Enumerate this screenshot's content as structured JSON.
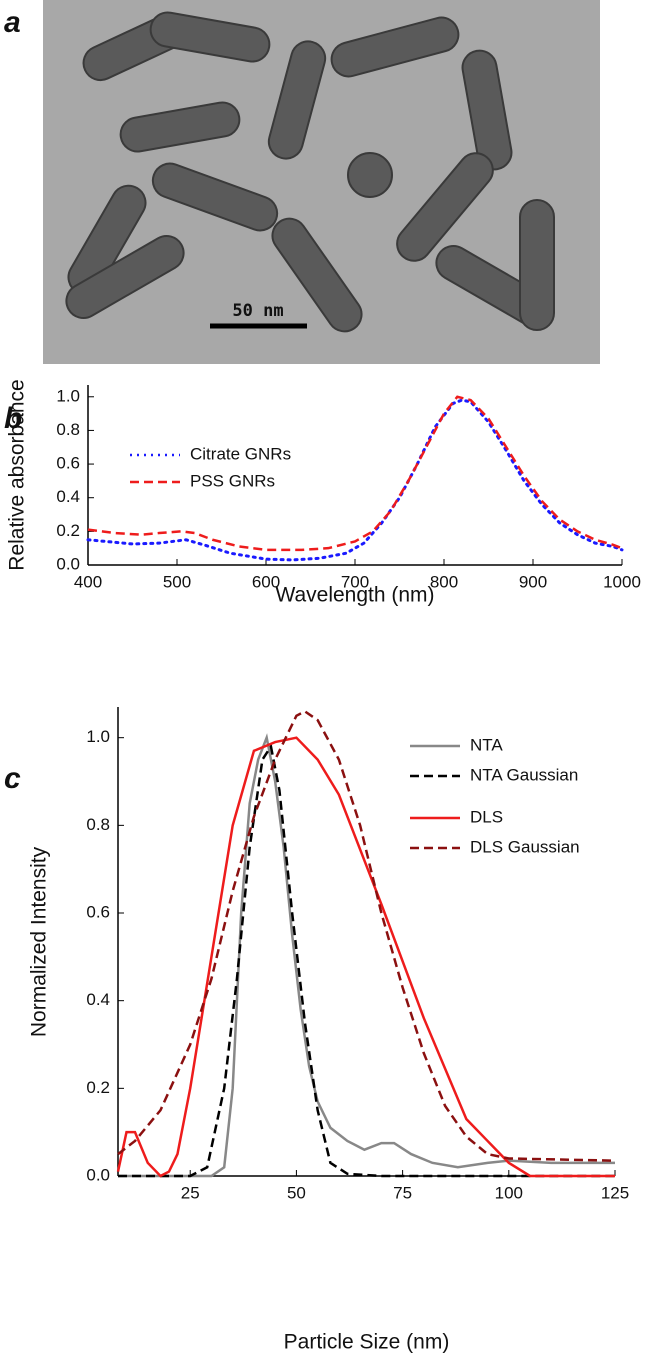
{
  "image": {
    "panel_label": "a",
    "scale_bar": "50 nm"
  },
  "chart_data": [
    {
      "type": "line",
      "panel_label": "b",
      "x_label": "Wavelength (nm)",
      "y_label": "Relative absorbance",
      "xlim": [
        400,
        1000
      ],
      "xticks": [
        400,
        500,
        600,
        700,
        800,
        900,
        1000
      ],
      "ylim": [
        0,
        1.07
      ],
      "yticks": [
        {
          "value": 0,
          "label": "0.0"
        },
        0.2,
        0.4,
        0.6,
        0.8,
        {
          "value": 1,
          "label": "1.0"
        }
      ],
      "legend": "upper left",
      "series": [
        {
          "name": "Citrate GNRs",
          "color": "#1a1aff",
          "dash": "dotted",
          "x": [
            400,
            450,
            480,
            510,
            530,
            560,
            600,
            630,
            660,
            690,
            710,
            730,
            750,
            770,
            790,
            810,
            820,
            830,
            850,
            870,
            890,
            910,
            930,
            950,
            970,
            990,
            1000
          ],
          "values": [
            0.15,
            0.125,
            0.13,
            0.15,
            0.12,
            0.07,
            0.035,
            0.03,
            0.04,
            0.07,
            0.13,
            0.25,
            0.4,
            0.6,
            0.82,
            0.96,
            0.98,
            0.97,
            0.85,
            0.68,
            0.5,
            0.36,
            0.25,
            0.18,
            0.13,
            0.11,
            0.09
          ]
        },
        {
          "name": "PSS GNRs",
          "color": "#ee1c1c",
          "dash": "dashed",
          "x": [
            400,
            430,
            460,
            480,
            505,
            520,
            540,
            570,
            600,
            640,
            670,
            700,
            720,
            740,
            760,
            780,
            800,
            815,
            830,
            850,
            870,
            890,
            910,
            930,
            950,
            970,
            990,
            1000
          ],
          "values": [
            0.21,
            0.19,
            0.18,
            0.19,
            0.2,
            0.19,
            0.15,
            0.11,
            0.09,
            0.09,
            0.1,
            0.14,
            0.2,
            0.32,
            0.5,
            0.7,
            0.9,
            1.0,
            0.98,
            0.87,
            0.7,
            0.53,
            0.38,
            0.27,
            0.2,
            0.15,
            0.12,
            0.1
          ]
        }
      ]
    },
    {
      "type": "line",
      "panel_label": "c",
      "x_label": "Particle Size (nm)",
      "y_label": "Normalized Intensity",
      "xlim": [
        8,
        125
      ],
      "xticks": [
        25,
        50,
        75,
        100,
        125
      ],
      "ylim": [
        0,
        1.07
      ],
      "yticks": [
        {
          "value": 0,
          "label": "0.0"
        },
        0.2,
        0.4,
        0.6,
        0.8,
        {
          "value": 1,
          "label": "1.0"
        }
      ],
      "legend": "upper right",
      "series": [
        {
          "name": "NTA",
          "color": "#888888",
          "dash": "solid",
          "x": [
            8,
            30,
            33,
            35,
            37,
            39,
            41,
            43,
            45,
            47,
            49,
            51,
            53,
            55,
            58,
            62,
            66,
            70,
            73,
            77,
            82,
            88,
            95,
            100,
            110,
            125
          ],
          "values": [
            0,
            0,
            0.02,
            0.2,
            0.6,
            0.85,
            0.95,
            1.0,
            0.9,
            0.75,
            0.55,
            0.38,
            0.25,
            0.17,
            0.11,
            0.08,
            0.06,
            0.075,
            0.075,
            0.05,
            0.03,
            0.02,
            0.03,
            0.035,
            0.03,
            0.03
          ]
        },
        {
          "name": "NTA Gaussian",
          "color": "#000000",
          "dash": "dashed",
          "x": [
            8,
            25,
            29,
            33,
            36,
            39,
            42,
            44,
            46,
            49,
            52,
            55,
            58,
            62,
            70,
            125
          ],
          "values": [
            0,
            0,
            0.02,
            0.2,
            0.45,
            0.75,
            0.95,
            0.98,
            0.88,
            0.6,
            0.35,
            0.15,
            0.03,
            0.005,
            0,
            0
          ]
        },
        {
          "name": "DLS",
          "color": "#ee1c1c",
          "dash": "solid",
          "x": [
            8,
            10,
            12,
            15,
            18,
            20,
            22,
            25,
            30,
            35,
            40,
            45,
            50,
            55,
            60,
            70,
            80,
            90,
            95,
            100,
            105,
            125
          ],
          "values": [
            0.01,
            0.1,
            0.1,
            0.03,
            0,
            0.01,
            0.05,
            0.2,
            0.5,
            0.8,
            0.97,
            0.99,
            1.0,
            0.95,
            0.87,
            0.62,
            0.36,
            0.13,
            0.08,
            0.03,
            0,
            0
          ]
        },
        {
          "name": "DLS Gaussian",
          "color": "#8b1010",
          "dash": "dashed",
          "x": [
            8,
            12,
            18,
            25,
            30,
            35,
            40,
            45,
            50,
            52,
            55,
            60,
            65,
            70,
            75,
            80,
            85,
            90,
            95,
            100,
            125
          ],
          "values": [
            0.05,
            0.08,
            0.15,
            0.3,
            0.45,
            0.65,
            0.82,
            0.95,
            1.05,
            1.06,
            1.04,
            0.95,
            0.8,
            0.6,
            0.43,
            0.28,
            0.16,
            0.09,
            0.05,
            0.04,
            0.035
          ]
        }
      ]
    }
  ]
}
